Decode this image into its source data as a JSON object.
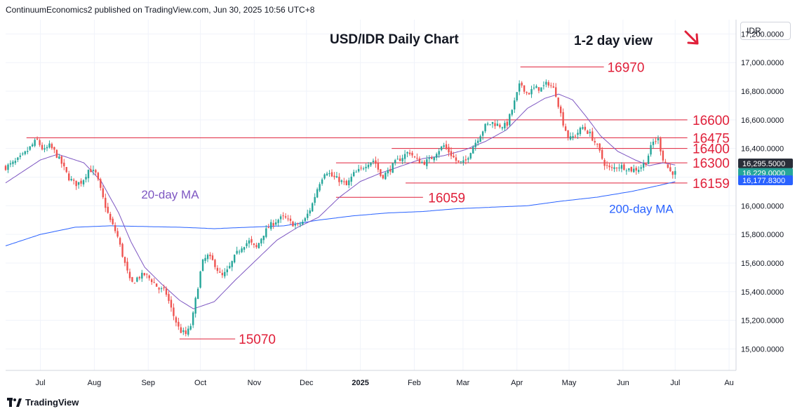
{
  "header": {
    "publisher": "ContinuumEconomics2 published on TradingView.com, Jun 30, 2025 10:56 UTC+8"
  },
  "currency_button": "IDR",
  "footer": {
    "logo_text": "TradingView"
  },
  "colors": {
    "candle_up": "#26a69a",
    "candle_down": "#ef5350",
    "ma20": "#7e57c2",
    "ma200": "#2962ff",
    "level_line": "#e0203a",
    "annotation_red": "#e0203a"
  },
  "chart_data": {
    "type": "candlestick",
    "title": "USD/IDR Daily Chart",
    "subtitle": "1-2 day view",
    "ylim": [
      14850,
      17300
    ],
    "y_ticks": [
      15000,
      15200,
      15400,
      15600,
      15800,
      16000,
      16200,
      16400,
      16600,
      16800,
      17000,
      17200
    ],
    "y_tick_labels": [
      "15,000.0000",
      "15,200.0000",
      "15,400.0000",
      "15,600.0000",
      "15,800.0000",
      "16,000.0000",
      "16,200.0000",
      "16,400.0000",
      "16,600.0000",
      "16,800.0000",
      "17,000.0000",
      "17,200.0000"
    ],
    "x_ticks": [
      "Jul",
      "Aug",
      "Sep",
      "Oct",
      "Nov",
      "Dec",
      "2025",
      "Feb",
      "Mar",
      "Apr",
      "May",
      "Jun",
      "Jul",
      "Au"
    ],
    "x_tick_days": [
      20,
      51,
      82,
      112,
      143,
      173,
      204,
      235,
      263,
      294,
      324,
      355,
      385,
      416
    ],
    "x_range_days": [
      0,
      420
    ],
    "price_anchors": [
      [
        0,
        16270
      ],
      [
        5,
        16300
      ],
      [
        10,
        16350
      ],
      [
        15,
        16420
      ],
      [
        18,
        16460
      ],
      [
        22,
        16380
      ],
      [
        25,
        16420
      ],
      [
        28,
        16380
      ],
      [
        32,
        16300
      ],
      [
        36,
        16200
      ],
      [
        40,
        16150
      ],
      [
        44,
        16170
      ],
      [
        48,
        16260
      ],
      [
        52,
        16220
      ],
      [
        56,
        16050
      ],
      [
        60,
        15900
      ],
      [
        64,
        15800
      ],
      [
        68,
        15620
      ],
      [
        72,
        15450
      ],
      [
        76,
        15500
      ],
      [
        80,
        15520
      ],
      [
        84,
        15480
      ],
      [
        88,
        15420
      ],
      [
        92,
        15400
      ],
      [
        96,
        15250
      ],
      [
        100,
        15130
      ],
      [
        104,
        15100
      ],
      [
        107,
        15180
      ],
      [
        110,
        15400
      ],
      [
        113,
        15600
      ],
      [
        116,
        15650
      ],
      [
        120,
        15600
      ],
      [
        124,
        15500
      ],
      [
        128,
        15550
      ],
      [
        132,
        15650
      ],
      [
        136,
        15720
      ],
      [
        140,
        15750
      ],
      [
        144,
        15700
      ],
      [
        148,
        15800
      ],
      [
        152,
        15860
      ],
      [
        156,
        15900
      ],
      [
        160,
        15920
      ],
      [
        164,
        15880
      ],
      [
        168,
        15860
      ],
      [
        172,
        15900
      ],
      [
        176,
        16000
      ],
      [
        180,
        16150
      ],
      [
        184,
        16250
      ],
      [
        188,
        16200
      ],
      [
        192,
        16180
      ],
      [
        196,
        16140
      ],
      [
        200,
        16220
      ],
      [
        204,
        16250
      ],
      [
        208,
        16300
      ],
      [
        212,
        16320
      ],
      [
        216,
        16200
      ],
      [
        220,
        16240
      ],
      [
        224,
        16300
      ],
      [
        228,
        16340
      ],
      [
        232,
        16380
      ],
      [
        236,
        16320
      ],
      [
        240,
        16300
      ],
      [
        244,
        16320
      ],
      [
        248,
        16380
      ],
      [
        252,
        16420
      ],
      [
        256,
        16360
      ],
      [
        260,
        16300
      ],
      [
        264,
        16300
      ],
      [
        268,
        16400
      ],
      [
        272,
        16480
      ],
      [
        276,
        16560
      ],
      [
        280,
        16580
      ],
      [
        284,
        16560
      ],
      [
        288,
        16560
      ],
      [
        292,
        16700
      ],
      [
        296,
        16860
      ],
      [
        300,
        16780
      ],
      [
        304,
        16820
      ],
      [
        308,
        16820
      ],
      [
        312,
        16860
      ],
      [
        316,
        16800
      ],
      [
        320,
        16600
      ],
      [
        324,
        16460
      ],
      [
        328,
        16500
      ],
      [
        332,
        16550
      ],
      [
        336,
        16500
      ],
      [
        340,
        16420
      ],
      [
        344,
        16300
      ],
      [
        348,
        16250
      ],
      [
        352,
        16280
      ],
      [
        356,
        16270
      ],
      [
        360,
        16250
      ],
      [
        364,
        16260
      ],
      [
        368,
        16300
      ],
      [
        372,
        16440
      ],
      [
        375,
        16470
      ],
      [
        378,
        16330
      ],
      [
        382,
        16240
      ],
      [
        385,
        16229
      ]
    ],
    "ma20_anchors": [
      [
        0,
        16160
      ],
      [
        20,
        16320
      ],
      [
        30,
        16360
      ],
      [
        45,
        16300
      ],
      [
        55,
        16170
      ],
      [
        65,
        15950
      ],
      [
        72,
        15750
      ],
      [
        80,
        15570
      ],
      [
        90,
        15450
      ],
      [
        100,
        15340
      ],
      [
        108,
        15280
      ],
      [
        120,
        15330
      ],
      [
        132,
        15480
      ],
      [
        144,
        15620
      ],
      [
        156,
        15760
      ],
      [
        168,
        15850
      ],
      [
        180,
        15920
      ],
      [
        192,
        16060
      ],
      [
        204,
        16170
      ],
      [
        216,
        16230
      ],
      [
        228,
        16280
      ],
      [
        240,
        16330
      ],
      [
        252,
        16350
      ],
      [
        264,
        16390
      ],
      [
        276,
        16450
      ],
      [
        288,
        16530
      ],
      [
        300,
        16680
      ],
      [
        310,
        16750
      ],
      [
        318,
        16780
      ],
      [
        326,
        16740
      ],
      [
        334,
        16620
      ],
      [
        342,
        16490
      ],
      [
        352,
        16380
      ],
      [
        362,
        16320
      ],
      [
        370,
        16280
      ],
      [
        378,
        16300
      ],
      [
        385,
        16285
      ]
    ],
    "ma200_anchors": [
      [
        0,
        15720
      ],
      [
        20,
        15800
      ],
      [
        40,
        15850
      ],
      [
        60,
        15860
      ],
      [
        80,
        15855
      ],
      [
        100,
        15850
      ],
      [
        120,
        15840
      ],
      [
        140,
        15850
      ],
      [
        160,
        15860
      ],
      [
        180,
        15900
      ],
      [
        200,
        15930
      ],
      [
        220,
        15950
      ],
      [
        240,
        15960
      ],
      [
        260,
        15980
      ],
      [
        280,
        15990
      ],
      [
        300,
        16000
      ],
      [
        318,
        16030
      ],
      [
        340,
        16060
      ],
      [
        360,
        16100
      ],
      [
        375,
        16140
      ],
      [
        385,
        16168
      ]
    ],
    "price_labels": [
      {
        "text": "16,295.5000",
        "value": 16295.5,
        "bg": "#2a2e39"
      },
      {
        "text": "16,229.0000",
        "value": 16229,
        "bg": "#26a69a"
      },
      {
        "text": "16,177.8300",
        "value": 16177.83,
        "bg": "#2962ff"
      }
    ],
    "levels": [
      {
        "label": "16970",
        "value": 16970,
        "x_start": 296,
        "x_end": 344,
        "label_day": 346
      },
      {
        "label": "16600",
        "value": 16600,
        "x_start": 266,
        "x_end": 392,
        "label_day": 395
      },
      {
        "label": "16475",
        "value": 16475,
        "x_start": 12,
        "x_end": 392,
        "label_day": 395
      },
      {
        "label": "16400",
        "value": 16400,
        "x_start": 222,
        "x_end": 392,
        "label_day": 395
      },
      {
        "label": "16300",
        "value": 16300,
        "x_start": 190,
        "x_end": 392,
        "label_day": 395
      },
      {
        "label": "16159",
        "value": 16159,
        "x_start": 230,
        "x_end": 392,
        "label_day": 395
      },
      {
        "label": "16059",
        "value": 16059,
        "x_start": 190,
        "x_end": 240,
        "label_day": 243
      },
      {
        "label": "15070",
        "value": 15070,
        "x_start": 100,
        "x_end": 132,
        "label_day": 134
      }
    ],
    "annotations": [
      {
        "text": "20-day MA",
        "day": 78,
        "value": 16050,
        "color": "#7e57c2"
      },
      {
        "text": "200-day MA",
        "day": 347,
        "value": 15950,
        "color": "#2962ff"
      }
    ]
  }
}
